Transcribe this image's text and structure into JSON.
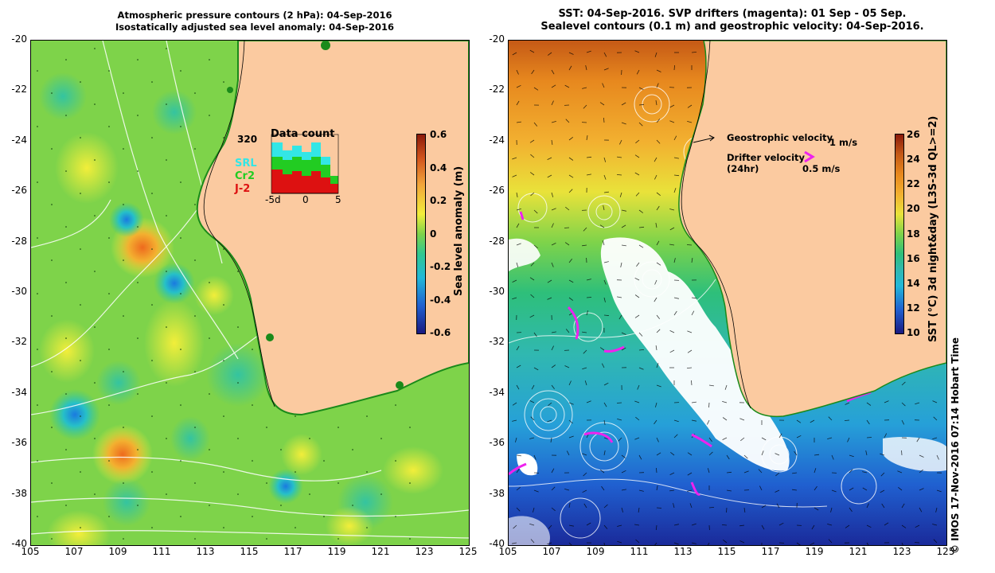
{
  "left_title": {
    "line1": "Atmospheric pressure contours (2 hPa): 04-Sep-2016",
    "line2": "Isostatically adjusted sea level anomaly: 04-Sep-2016"
  },
  "right_title": {
    "line1": "SST: 04-Sep-2016. SVP drifters (magenta): 01 Sep - 05 Sep.",
    "line2": "Sealevel contours (0.1 m) and geostrophic velocity: 04-Sep-2016."
  },
  "axes": {
    "lat_labels": [
      "-20",
      "-22",
      "-24",
      "-26",
      "-28",
      "-30",
      "-32",
      "-34",
      "-36",
      "-38",
      "-40"
    ],
    "lon_labels": [
      "105",
      "107",
      "109",
      "111",
      "113",
      "115",
      "117",
      "119",
      "121",
      "123",
      "125"
    ],
    "lon_range": [
      105,
      125
    ],
    "lat_range": [
      -40,
      -20
    ]
  },
  "left_colorbar": {
    "title": "Sea level anomaly (m)",
    "ticks": [
      "0.6",
      "0.4",
      "0.2",
      "0",
      "-0.2",
      "-0.4",
      "-0.6"
    ],
    "range": [
      -0.6,
      0.6
    ]
  },
  "right_colorbar": {
    "title": "SST (°C) 3d night&day (L3S-3d QL>=2)",
    "ticks": [
      "26",
      "24",
      "22",
      "20",
      "18",
      "16",
      "14",
      "12",
      "10"
    ],
    "range": [
      10,
      26
    ]
  },
  "data_count": {
    "title": "Data count",
    "max_label": "320",
    "satellites": [
      {
        "name": "SRL",
        "color": "#33e6e6"
      },
      {
        "name": "Cr2",
        "color": "#22cc22"
      },
      {
        "name": "J-2",
        "color": "#dd1111"
      }
    ],
    "axis_labels": [
      "-5d",
      "0",
      "5"
    ]
  },
  "legend": {
    "geostrophic_label": "Geostrophic velocity",
    "geostrophic_scale": "1 m/s",
    "drifter_label": "Drifter velocity",
    "drifter_sub": "(24hr)",
    "drifter_scale": "0.5 m/s"
  },
  "credit": "© IMOS 17-Nov-2016 07:14 Hobart Time",
  "colors": {
    "land": "#fbcaa0",
    "sla_background": "#7ed34a",
    "sst_background": "#2a8fd8",
    "drifter": "#ee22ee"
  }
}
